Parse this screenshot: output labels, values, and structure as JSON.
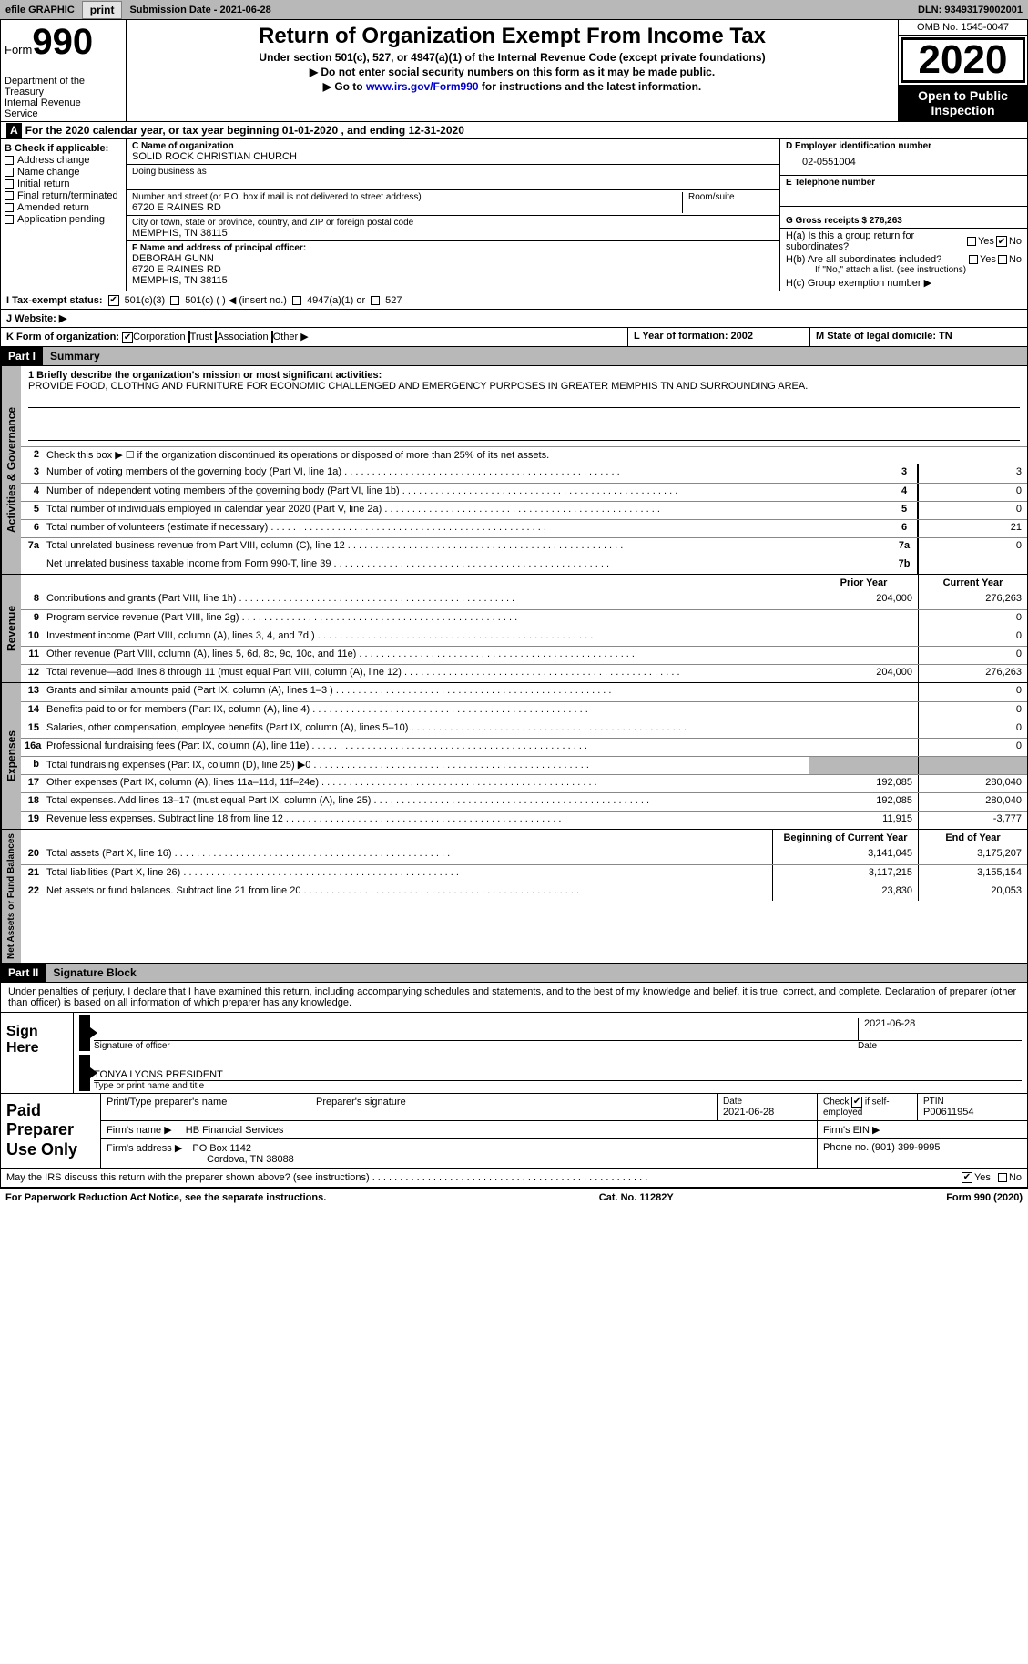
{
  "topbar": {
    "efile_label": "efile GRAPHIC",
    "print_btn": "print",
    "submission_label": "Submission Date - 2021-06-28",
    "dln_label": "DLN: 93493179002001"
  },
  "header": {
    "form_word": "Form",
    "form_number": "990",
    "dept": "Department of the Treasury\nInternal Revenue Service",
    "title": "Return of Organization Exempt From Income Tax",
    "subtitle": "Under section 501(c), 527, or 4947(a)(1) of the Internal Revenue Code (except private foundations)",
    "note1": "Do not enter social security numbers on this form as it may be made public.",
    "note2_pre": "Go to ",
    "note2_link": "www.irs.gov/Form990",
    "note2_post": " for instructions and the latest information.",
    "omb": "OMB No. 1545-0047",
    "year": "2020",
    "public": "Open to Public Inspection"
  },
  "period": "For the 2020 calendar year, or tax year beginning 01-01-2020   , and ending 12-31-2020",
  "section_b": {
    "heading": "B Check if applicable:",
    "checks": [
      "Address change",
      "Name change",
      "Initial return",
      "Final return/terminated",
      "Amended return",
      "Application pending"
    ],
    "c_label": "C Name of organization",
    "c_name": "SOLID ROCK CHRISTIAN CHURCH",
    "dba_label": "Doing business as",
    "addr_label": "Number and street (or P.O. box if mail is not delivered to street address)",
    "room_label": "Room/suite",
    "addr": "6720 E RAINES RD",
    "city_label": "City or town, state or province, country, and ZIP or foreign postal code",
    "city": "MEMPHIS, TN  38115",
    "d_label": "D Employer identification number",
    "d_ein": "02-0551004",
    "e_label": "E Telephone number",
    "g_label": "G Gross receipts $ 276,263",
    "f_label": "F  Name and address of principal officer:",
    "f_name": "DEBORAH GUNN",
    "f_addr1": "6720 E RAINES RD",
    "f_addr2": "MEMPHIS, TN  38115",
    "ha_label": "H(a)  Is this a group return for subordinates?",
    "hb_label": "H(b)  Are all subordinates included?",
    "hb_note": "If \"No,\" attach a list. (see instructions)",
    "hc_label": "H(c)  Group exemption number ▶",
    "yes": "Yes",
    "no": "No"
  },
  "row_i": {
    "label": "I  Tax-exempt status:",
    "opts": [
      "501(c)(3)",
      "501(c) (  ) ◀ (insert no.)",
      "4947(a)(1) or",
      "527"
    ]
  },
  "row_j": {
    "label": "J  Website: ▶"
  },
  "row_k": {
    "label": "K Form of organization:",
    "opts": [
      "Corporation",
      "Trust",
      "Association",
      "Other ▶"
    ],
    "l_label": "L Year of formation: 2002",
    "m_label": "M State of legal domicile: TN"
  },
  "part1": {
    "header": "Part I",
    "title": "Summary",
    "mission_label": "1  Briefly describe the organization's mission or most significant activities:",
    "mission": "PROVIDE FOOD, CLOTHNG AND FURNITURE FOR ECONOMIC CHALLENGED AND EMERGENCY PURPOSES IN GREATER MEMPHIS TN AND SURROUNDING AREA.",
    "line2": "Check this box ▶ ☐  if the organization discontinued its operations or disposed of more than 25% of its net assets.",
    "sidebar_gov": "Activities & Governance",
    "sidebar_rev": "Revenue",
    "sidebar_exp": "Expenses",
    "sidebar_net": "Net Assets or Fund Balances",
    "prior_year": "Prior Year",
    "current_year": "Current Year",
    "beg_year": "Beginning of Current Year",
    "end_year": "End of Year",
    "lines_gov": [
      {
        "n": "3",
        "t": "Number of voting members of the governing body (Part VI, line 1a)",
        "box": "3",
        "v": "3"
      },
      {
        "n": "4",
        "t": "Number of independent voting members of the governing body (Part VI, line 1b)",
        "box": "4",
        "v": "0"
      },
      {
        "n": "5",
        "t": "Total number of individuals employed in calendar year 2020 (Part V, line 2a)",
        "box": "5",
        "v": "0"
      },
      {
        "n": "6",
        "t": "Total number of volunteers (estimate if necessary)",
        "box": "6",
        "v": "21"
      },
      {
        "n": "7a",
        "t": "Total unrelated business revenue from Part VIII, column (C), line 12",
        "box": "7a",
        "v": "0"
      },
      {
        "n": "",
        "t": "Net unrelated business taxable income from Form 990-T, line 39",
        "box": "7b",
        "v": ""
      }
    ],
    "lines_rev": [
      {
        "n": "8",
        "t": "Contributions and grants (Part VIII, line 1h)",
        "p": "204,000",
        "c": "276,263"
      },
      {
        "n": "9",
        "t": "Program service revenue (Part VIII, line 2g)",
        "p": "",
        "c": "0"
      },
      {
        "n": "10",
        "t": "Investment income (Part VIII, column (A), lines 3, 4, and 7d )",
        "p": "",
        "c": "0"
      },
      {
        "n": "11",
        "t": "Other revenue (Part VIII, column (A), lines 5, 6d, 8c, 9c, 10c, and 11e)",
        "p": "",
        "c": "0"
      },
      {
        "n": "12",
        "t": "Total revenue—add lines 8 through 11 (must equal Part VIII, column (A), line 12)",
        "p": "204,000",
        "c": "276,263"
      }
    ],
    "lines_exp": [
      {
        "n": "13",
        "t": "Grants and similar amounts paid (Part IX, column (A), lines 1–3 )",
        "p": "",
        "c": "0"
      },
      {
        "n": "14",
        "t": "Benefits paid to or for members (Part IX, column (A), line 4)",
        "p": "",
        "c": "0"
      },
      {
        "n": "15",
        "t": "Salaries, other compensation, employee benefits (Part IX, column (A), lines 5–10)",
        "p": "",
        "c": "0"
      },
      {
        "n": "16a",
        "t": "Professional fundraising fees (Part IX, column (A), line 11e)",
        "p": "",
        "c": "0"
      },
      {
        "n": "b",
        "t": "Total fundraising expenses (Part IX, column (D), line 25) ▶0",
        "p": "SHADE",
        "c": "SHADE"
      },
      {
        "n": "17",
        "t": "Other expenses (Part IX, column (A), lines 11a–11d, 11f–24e)",
        "p": "192,085",
        "c": "280,040"
      },
      {
        "n": "18",
        "t": "Total expenses. Add lines 13–17 (must equal Part IX, column (A), line 25)",
        "p": "192,085",
        "c": "280,040"
      },
      {
        "n": "19",
        "t": "Revenue less expenses. Subtract line 18 from line 12",
        "p": "11,915",
        "c": "-3,777"
      }
    ],
    "lines_net": [
      {
        "n": "20",
        "t": "Total assets (Part X, line 16)",
        "p": "3,141,045",
        "c": "3,175,207"
      },
      {
        "n": "21",
        "t": "Total liabilities (Part X, line 26)",
        "p": "3,117,215",
        "c": "3,155,154"
      },
      {
        "n": "22",
        "t": "Net assets or fund balances. Subtract line 21 from line 20",
        "p": "23,830",
        "c": "20,053"
      }
    ]
  },
  "part2": {
    "header": "Part II",
    "title": "Signature Block",
    "declaration": "Under penalties of perjury, I declare that I have examined this return, including accompanying schedules and statements, and to the best of my knowledge and belief, it is true, correct, and complete. Declaration of preparer (other than officer) is based on all information of which preparer has any knowledge.",
    "sign_here": "Sign Here",
    "sig_officer": "Signature of officer",
    "sig_date": "2021-06-28",
    "date_label": "Date",
    "name_title": "TONYA LYONS  PRESIDENT",
    "name_label": "Type or print name and title"
  },
  "preparer": {
    "label": "Paid Preparer Use Only",
    "print_name_label": "Print/Type preparer's name",
    "sig_label": "Preparer's signature",
    "date_label": "Date",
    "date_val": "2021-06-28",
    "check_label": "Check ☑ if self-employed",
    "ptin_label": "PTIN",
    "ptin_val": "P00611954",
    "firm_name_label": "Firm's name   ▶",
    "firm_name": "HB Financial Services",
    "firm_ein_label": "Firm's EIN ▶",
    "firm_addr_label": "Firm's address ▶",
    "firm_addr1": "PO Box 1142",
    "firm_addr2": "Cordova, TN  38088",
    "phone_label": "Phone no. (901) 399-9995"
  },
  "discuss": {
    "text": "May the IRS discuss this return with the preparer shown above? (see instructions)",
    "yes": "Yes",
    "no": "No"
  },
  "footer": {
    "left": "For Paperwork Reduction Act Notice, see the separate instructions.",
    "mid": "Cat. No. 11282Y",
    "right": "Form 990 (2020)"
  },
  "colors": {
    "gray": "#b8b8b8",
    "link": "#0000cc"
  }
}
